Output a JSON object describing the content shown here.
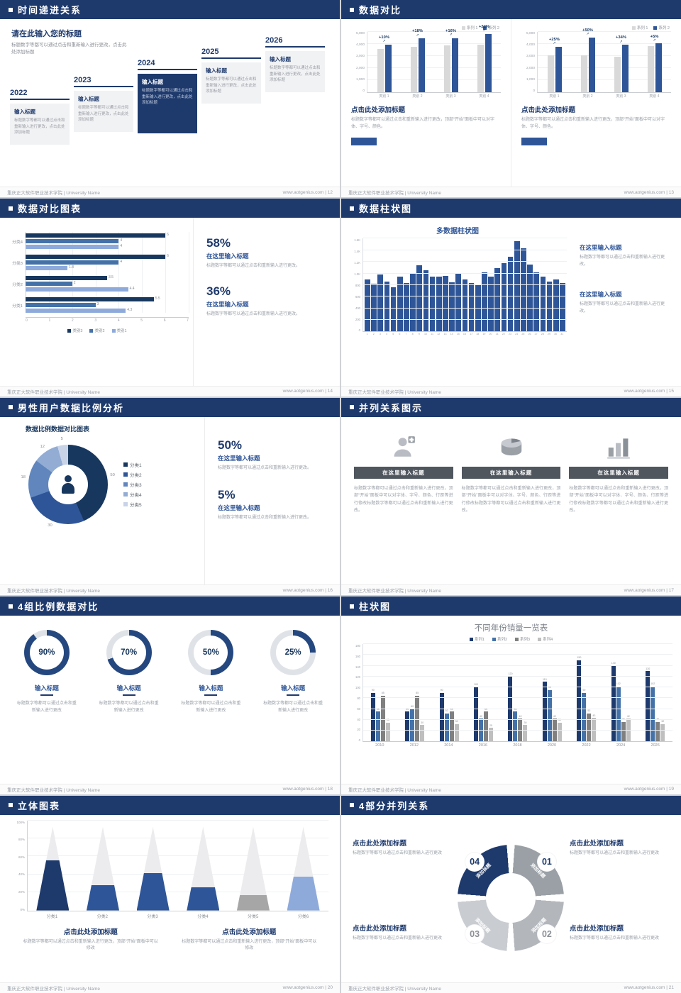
{
  "footer": {
    "left": "重庆正大软件职业技术学院 | University Name"
  },
  "icons": {
    "up_arrow": "↗"
  },
  "colors": {
    "header_bg": "#1e3a6d",
    "accent": "#2e5597",
    "navy": "#1e3a6d",
    "mid_blue": "#4472a8",
    "light_blue": "#8eaadb",
    "gray_bar": "#d9d9d9"
  },
  "slides": {
    "s12": {
      "title": "时间递进关系",
      "page": "12",
      "footer_right": "www.aotgenius.com | 12",
      "heading": "请在此输入您的标题",
      "desc": "标题数字等都可以通过点击和重新输入进行更改，点击此处添加标题",
      "items": [
        {
          "year": "2022",
          "label": "输入标题",
          "text": "标题数字等都可以通过点击和重新输入进行更改，点击此处添加标题",
          "highlight": false
        },
        {
          "year": "2023",
          "label": "输入标题",
          "text": "标题数字等都可以通过点击和重新输入进行更改，点击此处添加标题",
          "highlight": false
        },
        {
          "year": "2024",
          "label": "输入标题",
          "text": "标题数字等都可以通过点击和重新输入进行更改，点击此处添加标题",
          "highlight": true
        },
        {
          "year": "2025",
          "label": "输入标题",
          "text": "标题数字等都可以通过点击和重新输入进行更改，点击此处添加标题",
          "highlight": false
        },
        {
          "year": "2026",
          "label": "输入标题",
          "text": "标题数字等都可以通过点击和重新输入进行更改，点击此处添加标题",
          "highlight": false
        }
      ]
    },
    "s13": {
      "title": "数据对比",
      "page": "13",
      "footer_right": "www.aotgenius.com | 13",
      "left": {
        "heading": "点击此处添加标题",
        "text": "标题数字等都可以通过点击和重新输入进行更改，顶部“开始”面板中可以对字体、字号、颜色。"
      },
      "right": {
        "heading": "点击此处添加标题",
        "text": "标题数字等都可以通过点击和重新输入进行更改，顶部“开始”面板中可以对字体、字号、颜色。"
      }
    },
    "s14": {
      "title": "数据对比图表",
      "page": "14",
      "footer_right": "www.aotgenius.com | 14",
      "blocks": [
        {
          "percent": "58%",
          "heading": "在这里输入标题",
          "text": "标题数字等都可以通过点击和重新输入进行更改。"
        },
        {
          "percent": "36%",
          "heading": "在这里输入标题",
          "text": "标题数字等都可以通过点击和重新输入进行更改。"
        }
      ]
    },
    "s15": {
      "title": "数据柱状图",
      "page": "15",
      "footer_right": "www.aotgenius.com | 15",
      "blocks": [
        {
          "heading": "在这里输入标题",
          "text": "标题数字等都可以通过点击和重新输入进行更改。"
        },
        {
          "heading": "在这里输入标题",
          "text": "标题数字等都可以通过点击和重新输入进行更改。"
        }
      ]
    },
    "s16": {
      "title": "男性用户数据比例分析",
      "page": "16",
      "footer_right": "www.aotgenius.com | 16",
      "chart_title": "数据比例数据对比图表",
      "blocks": [
        {
          "percent": "50%",
          "heading": "在这里输入标题",
          "text": "标题数字等都可以通过点击和重新输入进行更改。"
        },
        {
          "percent": "5%",
          "heading": "在这里输入标题",
          "text": "标题数字等都可以通过点击和重新输入进行更改。"
        }
      ]
    },
    "s17": {
      "title": "并列关系图示",
      "page": "17",
      "footer_right": "www.aotgenius.com | 17",
      "cards": [
        {
          "label": "在这里输入标题",
          "text": "标题数字等都可以通过点击和重新输入进行更改，顶部“开始”面板中可以对字体、字号、颜色、行距等进行修改标题数字等都可以通过点击和重新输入进行更改。"
        },
        {
          "label": "在这里输入标题",
          "text": "标题数字等都可以通过点击和重新输入进行更改，顶部“开始”面板中可以对字体、字号、颜色、行距等进行修改标题数字等都可以通过点击和重新输入进行更改。"
        },
        {
          "label": "在这里输入标题",
          "text": "标题数字等都可以通过点击和重新输入进行更改，顶部“开始”面板中可以对字体、字号、颜色、行距等进行修改标题数字等都可以通过点击和重新输入进行更改。"
        }
      ]
    },
    "s18": {
      "title": "4组比例数据对比",
      "page": "18",
      "footer_right": "www.aotgenius.com | 18",
      "items": [
        {
          "label": "输入标题",
          "text": "标题数字等都可以通过点击和重新输入进行更改"
        },
        {
          "label": "输入标题",
          "text": "标题数字等都可以通过点击和重新输入进行更改"
        },
        {
          "label": "输入标题",
          "text": "标题数字等都可以通过点击和重新输入进行更改"
        },
        {
          "label": "输入标题",
          "text": "标题数字等都可以通过点击和重新输入进行更改"
        }
      ]
    },
    "s19": {
      "title": "柱状图",
      "page": "19",
      "footer_right": "www.aotgenius.com | 19"
    },
    "s20": {
      "title": "立体图表",
      "page": "20",
      "footer_right": "www.aotgenius.com | 20",
      "blocks": [
        {
          "heading": "点击此处添加标题",
          "text": "标题数字等都可以通过点击和重新输入进行更改，顶部“开始”面板中可以修改"
        },
        {
          "heading": "点击此处添加标题",
          "text": "标题数字等都可以通过点击和重新输入进行更改，顶部“开始”面板中可以修改"
        }
      ]
    },
    "s21": {
      "title": "4部分并列关系",
      "page": "21",
      "footer_right": "www.aotgenius.com | 21",
      "blocks": [
        {
          "heading": "点击此处添加标题",
          "text": "标题数字等都可以通过点击和重新输入进行更改"
        },
        {
          "heading": "点击此处添加标题",
          "text": "标题数字等都可以通过点击和重新输入进行更改"
        },
        {
          "heading": "点击此处添加标题",
          "text": "标题数字等都可以通过点击和重新输入进行更改"
        },
        {
          "heading": "点击此处添加标题",
          "text": "标题数字等都可以通过点击和重新输入进行更改"
        }
      ]
    }
  },
  "chart_data": [
    {
      "id": "s13a",
      "type": "bar",
      "mount": "c-s13a",
      "categories": [
        "类别 1",
        "类别 2",
        "类别 3",
        "类别 4"
      ],
      "series": [
        {
          "name": "系列 1",
          "color": "#d9d9d9",
          "values": [
            3900,
            4100,
            4200,
            4300
          ]
        },
        {
          "name": "系列 2",
          "color": "#2e5597",
          "values": [
            4290,
            4840,
            4870,
            5250
          ]
        }
      ],
      "labels": [
        "+10%",
        "+18%",
        "+16%",
        "+22%"
      ],
      "ylim": [
        0,
        5500
      ],
      "yticks": [
        "5,000",
        "4,000",
        "3,000",
        "2,000",
        "1,000",
        "0"
      ]
    },
    {
      "id": "s13b",
      "type": "bar",
      "mount": "c-s13b",
      "categories": [
        "类别 1",
        "类别 2",
        "类别 3",
        "类别 4"
      ],
      "series": [
        {
          "name": "系列 1",
          "color": "#d9d9d9",
          "values": [
            3000,
            3000,
            2900,
            3800
          ]
        },
        {
          "name": "系列 2",
          "color": "#2e5597",
          "values": [
            3750,
            4500,
            3890,
            3990
          ]
        }
      ],
      "labels": [
        "+25%",
        "+50%",
        "+34%",
        "+5%"
      ],
      "ylim": [
        0,
        5000
      ],
      "yticks": [
        "5,000",
        "4,000",
        "3,000",
        "2,000",
        "1,000",
        "0"
      ]
    },
    {
      "id": "s14",
      "type": "bar-h",
      "mount": "c-s14",
      "categories": [
        "分类4",
        "分类3",
        "分类2",
        "分类1"
      ],
      "series": [
        {
          "name": "类别3",
          "color": "#17375e"
        },
        {
          "name": "类别2",
          "color": "#4472a8"
        },
        {
          "name": "类别1",
          "color": "#8eaadb"
        }
      ],
      "rows": [
        [
          6,
          4,
          4
        ],
        [
          6,
          4,
          1.8
        ],
        [
          3.5,
          2,
          4.4
        ],
        [
          5.5,
          3,
          4.3
        ]
      ],
      "xmax": 7,
      "xticks": [
        "0",
        "1",
        "2",
        "3",
        "4",
        "5",
        "6",
        "7"
      ]
    },
    {
      "id": "s15",
      "type": "bar",
      "mount": "c-s15",
      "title": "多数据柱状图",
      "color": "#2e5597",
      "x": [
        "1",
        "2",
        "3",
        "4",
        "5",
        "6",
        "7",
        "8",
        "9",
        "10",
        "11",
        "12",
        "13",
        "14",
        "15",
        "16",
        "17",
        "18",
        "19",
        "20",
        "21",
        "22",
        "23",
        "24",
        "25",
        "26",
        "27",
        "28",
        "29",
        "30",
        "31"
      ],
      "values": [
        900,
        820,
        980,
        860,
        760,
        940,
        830,
        1000,
        1140,
        1060,
        950,
        940,
        960,
        850,
        1010,
        900,
        830,
        800,
        1020,
        950,
        1090,
        1180,
        1290,
        1560,
        1440,
        1150,
        1020,
        950,
        860,
        900,
        830
      ],
      "ylim": [
        0,
        1600
      ],
      "yticks": [
        "1.6K",
        "1.4K",
        "1.2K",
        "1.0K",
        "800",
        "600",
        "400",
        "200",
        "0"
      ]
    },
    {
      "id": "s16",
      "type": "donut",
      "mount": "c-s16",
      "values": [
        50,
        30,
        18,
        12,
        5
      ],
      "labels": [
        "50",
        "30",
        "18",
        "12",
        "5"
      ],
      "legend": [
        "分类1",
        "分类2",
        "分类3",
        "分类4",
        "分类5"
      ],
      "colors": [
        "#17375e",
        "#2e5597",
        "#6186bd",
        "#93acd4",
        "#c8d3e8"
      ]
    },
    {
      "id": "s18",
      "type": "gauge",
      "mount": "c-s18",
      "values": [
        90,
        70,
        50,
        25
      ],
      "arc_color": "#24477f",
      "track_color": "#dfe3e8"
    },
    {
      "id": "s19",
      "type": "bar-grouped",
      "mount": "c-s19",
      "title": "不同年份销量一览表",
      "categories": [
        "2010",
        "2012",
        "2014",
        "2016",
        "2018",
        "2020",
        "2022",
        "2024",
        "2026"
      ],
      "series": [
        {
          "name": "系列1",
          "color": "#1e3a6d",
          "values": [
            90,
            55,
            90,
            100,
            120,
            110,
            150,
            140,
            130
          ]
        },
        {
          "name": "系列2",
          "color": "#4472a8",
          "values": [
            55,
            60,
            52,
            42,
            55,
            95,
            90,
            102,
            102
          ]
        },
        {
          "name": "系列3",
          "color": "#808080",
          "values": [
            85,
            85,
            55,
            55,
            42,
            42,
            52,
            36,
            36
          ]
        },
        {
          "name": "系列4",
          "color": "#bfbfbf",
          "values": [
            35,
            30,
            32,
            25,
            30,
            35,
            43,
            42,
            32
          ]
        }
      ],
      "ylim": [
        0,
        180
      ],
      "yticks": [
        "180",
        "160",
        "140",
        "120",
        "100",
        "80",
        "60",
        "40",
        "20",
        "0"
      ]
    },
    {
      "id": "s20",
      "type": "cone",
      "mount": "c-s20",
      "categories": [
        "分类1",
        "分类2",
        "分类3",
        "分类4",
        "分类5",
        "分类6"
      ],
      "values": [
        60,
        30,
        45,
        28,
        18,
        40
      ],
      "colors": [
        "#1e3a6d",
        "#2e5597",
        "#2e5597",
        "#2e5597",
        "#a6a6a6",
        "#8eaadb"
      ],
      "yticks": [
        "100%",
        "80%",
        "60%",
        "40%",
        "20%",
        "0%"
      ]
    },
    {
      "id": "s21",
      "type": "cycle",
      "mount": "c-s21",
      "segments": [
        {
          "label": "添加标题",
          "color": "#1e3a6d"
        },
        {
          "label": "添加标题",
          "color": "#9aa0a6"
        },
        {
          "label": "添加标题",
          "color": "#b3b7bc"
        },
        {
          "label": "添加标题",
          "color": "#c9ccd1"
        }
      ],
      "numbers": [
        {
          "text": "01",
          "color": "#1e3a6d"
        },
        {
          "text": "02",
          "color": "#8c9096"
        },
        {
          "text": "03",
          "color": "#8c9096"
        },
        {
          "text": "04",
          "color": "#1e3a6d"
        }
      ]
    }
  ]
}
